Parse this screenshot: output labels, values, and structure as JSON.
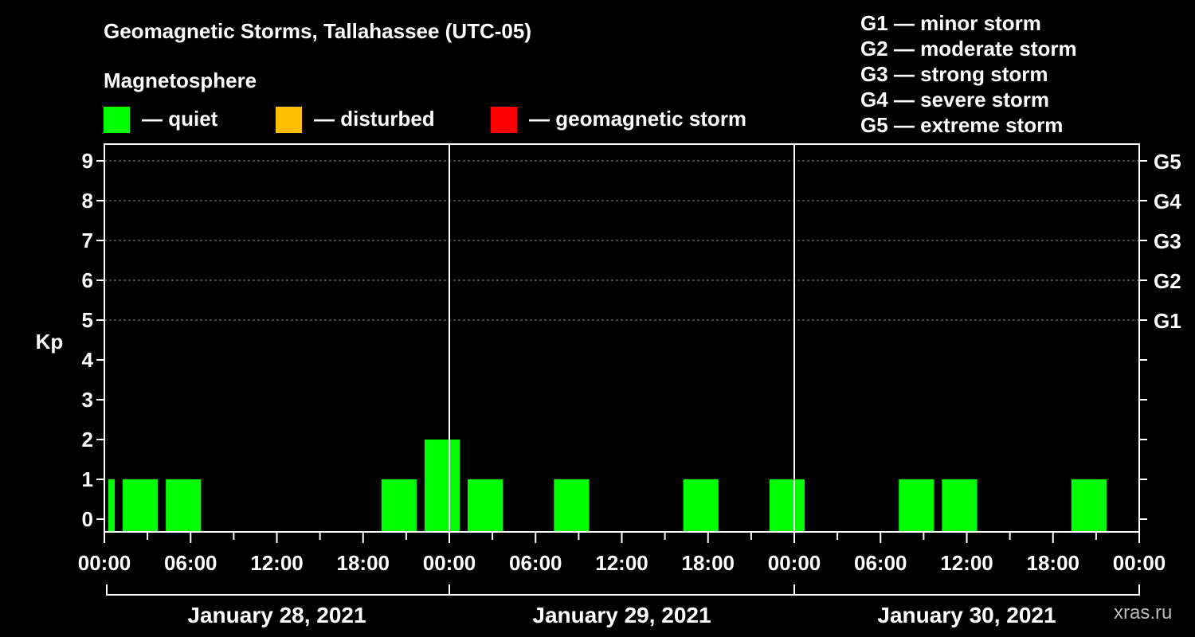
{
  "header": {
    "title": "Geomagnetic Storms, Tallahassee (UTC-05)",
    "legend_title": "Magnetosphere"
  },
  "legend": [
    {
      "label": "— quiet",
      "color": "#00ff00"
    },
    {
      "label": "— disturbed",
      "color": "#ffbf00"
    },
    {
      "label": "— geomagnetic storm",
      "color": "#ff0000"
    }
  ],
  "storm_scale": [
    "G1 — minor storm",
    "G2 — moderate storm",
    "G3 — strong storm",
    "G4 — severe storm",
    "G5 — extreme storm"
  ],
  "watermark": "xras.ru",
  "chart_data": {
    "type": "bar",
    "ylabel": "Kp",
    "ylim": [
      0,
      9
    ],
    "y_ticks": [
      "0",
      "1",
      "2",
      "3",
      "4",
      "5",
      "6",
      "7",
      "8",
      "9"
    ],
    "g_levels": [
      {
        "kp": 5,
        "label": "G1"
      },
      {
        "kp": 6,
        "label": "G2"
      },
      {
        "kp": 7,
        "label": "G3"
      },
      {
        "kp": 8,
        "label": "G4"
      },
      {
        "kp": 9,
        "label": "G5"
      }
    ],
    "x_range_hours": [
      0,
      72
    ],
    "x_ticks": [
      {
        "hour": 0,
        "label": "00:00"
      },
      {
        "hour": 6,
        "label": "06:00"
      },
      {
        "hour": 12,
        "label": "12:00"
      },
      {
        "hour": 18,
        "label": "18:00"
      },
      {
        "hour": 24,
        "label": "00:00"
      },
      {
        "hour": 30,
        "label": "06:00"
      },
      {
        "hour": 36,
        "label": "12:00"
      },
      {
        "hour": 42,
        "label": "18:00"
      },
      {
        "hour": 48,
        "label": "00:00"
      },
      {
        "hour": 54,
        "label": "06:00"
      },
      {
        "hour": 60,
        "label": "12:00"
      },
      {
        "hour": 66,
        "label": "18:00"
      },
      {
        "hour": 72,
        "label": "00:00"
      }
    ],
    "days": [
      {
        "label": "January 28, 2021",
        "start_hour": 0,
        "end_hour": 24
      },
      {
        "label": "January 29, 2021",
        "start_hour": 24,
        "end_hour": 48
      },
      {
        "label": "January 30, 2021",
        "start_hour": 48,
        "end_hour": 72
      }
    ],
    "bars": [
      {
        "start_hour": 0,
        "end_hour": 1,
        "kp": 1,
        "status": "quiet"
      },
      {
        "start_hour": 1,
        "end_hour": 4,
        "kp": 1,
        "status": "quiet"
      },
      {
        "start_hour": 4,
        "end_hour": 7,
        "kp": 1,
        "status": "quiet"
      },
      {
        "start_hour": 19,
        "end_hour": 22,
        "kp": 1,
        "status": "quiet"
      },
      {
        "start_hour": 22,
        "end_hour": 25,
        "kp": 2,
        "status": "quiet"
      },
      {
        "start_hour": 25,
        "end_hour": 28,
        "kp": 1,
        "status": "quiet"
      },
      {
        "start_hour": 31,
        "end_hour": 34,
        "kp": 1,
        "status": "quiet"
      },
      {
        "start_hour": 40,
        "end_hour": 43,
        "kp": 1,
        "status": "quiet"
      },
      {
        "start_hour": 46,
        "end_hour": 49,
        "kp": 1,
        "status": "quiet"
      },
      {
        "start_hour": 55,
        "end_hour": 58,
        "kp": 1,
        "status": "quiet"
      },
      {
        "start_hour": 58,
        "end_hour": 61,
        "kp": 1,
        "status": "quiet"
      },
      {
        "start_hour": 67,
        "end_hour": 70,
        "kp": 1,
        "status": "quiet"
      }
    ],
    "grid": true
  }
}
